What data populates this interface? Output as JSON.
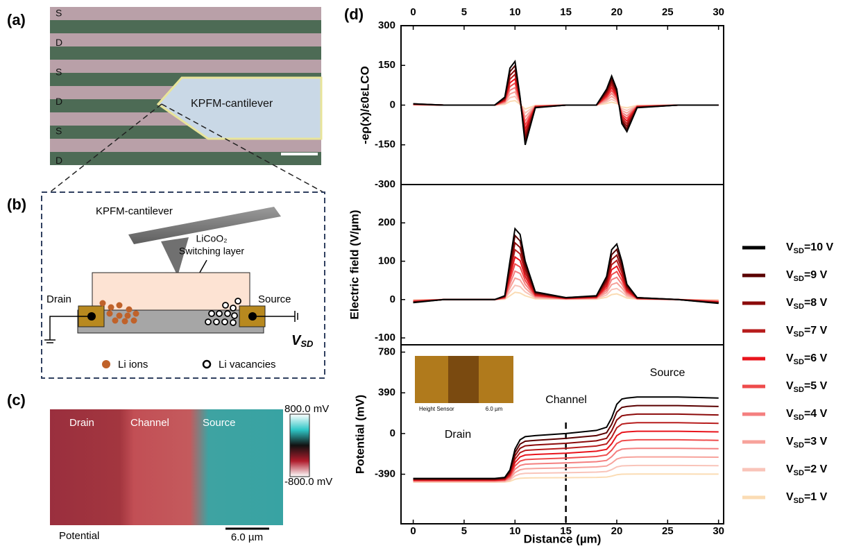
{
  "panels": {
    "a": {
      "label": "(a)",
      "rows": [
        "S",
        "D",
        "S",
        "D",
        "S",
        "D"
      ],
      "cantilever": "KPFM-cantilever"
    },
    "b": {
      "label": "(b)",
      "cantilever": "KPFM-cantilever",
      "material": "LiCoO₂",
      "layer": "Switching layer",
      "drain": "Drain",
      "source": "Source",
      "voltage": "VSD",
      "ions": "Li ions",
      "vacancies": "Li vacancies"
    },
    "c": {
      "label": "(c)",
      "regions": [
        "Drain",
        "Channel",
        "Source"
      ],
      "colorbar_max": "800.0 mV",
      "colorbar_min": "-800.0 mV",
      "caption": "Potential",
      "scale": "6.0 µm"
    },
    "d": {
      "label": "(d)"
    }
  },
  "chart_data": [
    {
      "type": "line",
      "ylabel": "-eρ(x)/ε0εLCO",
      "xaxis": "top",
      "x": [
        0,
        3,
        6,
        8,
        9,
        9.5,
        10,
        10.5,
        11,
        12,
        15,
        18,
        19,
        19.5,
        20,
        20.5,
        21,
        22,
        26,
        30
      ],
      "xlim": [
        -1.2,
        30.5
      ],
      "xticks": [
        0,
        5,
        10,
        15,
        20,
        25,
        30
      ],
      "ylim": [
        -300,
        300
      ],
      "yticks": [
        -300,
        -150,
        0,
        150,
        300
      ],
      "series": [
        {
          "values": [
            5,
            0,
            0,
            0,
            30,
            140,
            165,
            30,
            -150,
            -10,
            0,
            0,
            60,
            110,
            60,
            -70,
            -100,
            -10,
            0,
            0
          ]
        },
        {
          "values": [
            5,
            0,
            0,
            0,
            27,
            126,
            149,
            27,
            -135,
            -9,
            0,
            0,
            54,
            99,
            54,
            -63,
            -90,
            -9,
            0,
            0
          ]
        },
        {
          "values": [
            4,
            0,
            0,
            0,
            24,
            112,
            132,
            24,
            -120,
            -8,
            0,
            0,
            48,
            88,
            48,
            -56,
            -80,
            -8,
            0,
            0
          ]
        },
        {
          "values": [
            4,
            0,
            0,
            0,
            21,
            98,
            116,
            21,
            -105,
            -7,
            0,
            0,
            42,
            77,
            42,
            -49,
            -70,
            -7,
            0,
            0
          ]
        },
        {
          "values": [
            3,
            0,
            0,
            0,
            18,
            84,
            99,
            18,
            -90,
            -6,
            0,
            0,
            36,
            66,
            36,
            -42,
            -60,
            -6,
            0,
            0
          ]
        },
        {
          "values": [
            3,
            0,
            0,
            0,
            15,
            70,
            83,
            15,
            -75,
            -5,
            0,
            0,
            30,
            55,
            30,
            -35,
            -50,
            -5,
            0,
            0
          ]
        },
        {
          "values": [
            2,
            0,
            0,
            0,
            12,
            56,
            66,
            12,
            -60,
            -4,
            0,
            0,
            24,
            44,
            24,
            -28,
            -40,
            -4,
            0,
            0
          ]
        },
        {
          "values": [
            2,
            0,
            0,
            0,
            9,
            42,
            50,
            9,
            -45,
            -3,
            0,
            0,
            18,
            33,
            18,
            -21,
            -30,
            -3,
            0,
            0
          ]
        },
        {
          "values": [
            1,
            0,
            0,
            0,
            6,
            28,
            33,
            6,
            -30,
            -2,
            0,
            0,
            12,
            22,
            12,
            -14,
            -20,
            -2,
            0,
            0
          ]
        },
        {
          "values": [
            1,
            0,
            0,
            0,
            3,
            14,
            17,
            3,
            -15,
            -1,
            0,
            0,
            6,
            11,
            6,
            -7,
            -10,
            -1,
            0,
            0
          ]
        }
      ]
    },
    {
      "type": "line",
      "ylabel": "Electric field (V/µm)",
      "x": [
        0,
        3,
        6,
        8,
        9,
        9.5,
        10,
        10.5,
        11,
        12,
        15,
        18,
        19,
        19.5,
        20,
        20.5,
        21,
        22,
        26,
        30
      ],
      "xlim": [
        -1.2,
        30.5
      ],
      "ylim": [
        -118,
        300
      ],
      "yticks": [
        -100,
        0,
        100,
        200
      ],
      "series": [
        {
          "values": [
            -8,
            0,
            0,
            0,
            10,
            100,
            185,
            170,
            100,
            20,
            5,
            10,
            60,
            130,
            145,
            100,
            40,
            5,
            0,
            -10
          ]
        },
        {
          "values": [
            -7,
            0,
            0,
            0,
            9,
            90,
            167,
            153,
            90,
            18,
            5,
            9,
            54,
            117,
            131,
            90,
            36,
            5,
            0,
            -9
          ]
        },
        {
          "values": [
            -6,
            0,
            0,
            0,
            8,
            80,
            148,
            136,
            80,
            16,
            4,
            8,
            48,
            104,
            116,
            80,
            32,
            4,
            0,
            -8
          ]
        },
        {
          "values": [
            -6,
            0,
            0,
            0,
            7,
            70,
            130,
            119,
            70,
            14,
            4,
            7,
            42,
            91,
            102,
            70,
            28,
            4,
            0,
            -7
          ]
        },
        {
          "values": [
            -5,
            0,
            0,
            0,
            6,
            60,
            111,
            102,
            60,
            12,
            3,
            6,
            36,
            78,
            87,
            60,
            24,
            3,
            0,
            -6
          ]
        },
        {
          "values": [
            -4,
            0,
            0,
            0,
            5,
            50,
            93,
            85,
            50,
            10,
            3,
            5,
            30,
            65,
            73,
            50,
            20,
            3,
            0,
            -5
          ]
        },
        {
          "values": [
            -3,
            0,
            0,
            0,
            4,
            40,
            74,
            68,
            40,
            8,
            2,
            4,
            24,
            52,
            58,
            40,
            16,
            2,
            0,
            -4
          ]
        },
        {
          "values": [
            -2,
            0,
            0,
            0,
            3,
            30,
            56,
            51,
            30,
            6,
            2,
            3,
            18,
            39,
            44,
            30,
            12,
            2,
            0,
            -3
          ]
        },
        {
          "values": [
            -2,
            0,
            0,
            0,
            2,
            20,
            37,
            34,
            20,
            4,
            1,
            2,
            12,
            26,
            29,
            20,
            8,
            1,
            0,
            -2
          ]
        },
        {
          "values": [
            -1,
            0,
            0,
            0,
            1,
            10,
            19,
            17,
            10,
            2,
            1,
            1,
            6,
            13,
            15,
            10,
            4,
            1,
            0,
            -1
          ]
        }
      ]
    },
    {
      "type": "line",
      "ylabel": "Potential (mV)",
      "xlabel": "Distance (µm)",
      "xaxis": "bottom",
      "x": [
        0,
        3,
        6,
        8,
        9,
        9.5,
        10,
        10.5,
        11,
        12,
        15,
        18,
        19,
        19.5,
        20,
        20.5,
        21,
        22,
        26,
        30
      ],
      "xlim": [
        -1.2,
        30.5
      ],
      "xticks": [
        0,
        5,
        10,
        15,
        20,
        25,
        30
      ],
      "ylim": [
        -865,
        850
      ],
      "yticks": [
        -390,
        0,
        390,
        780
      ],
      "annotations": [
        "Drain",
        "Channel",
        "Source"
      ],
      "vline_x": 15,
      "inset": {
        "label": "Height Sensor",
        "scale": "6.0 µm"
      },
      "series": [
        {
          "name": "VSD=10 V",
          "color": "#000000",
          "values": [
            -430,
            -430,
            -430,
            -430,
            -420,
            -350,
            -150,
            -60,
            -30,
            -20,
            0,
            30,
            60,
            150,
            280,
            330,
            340,
            350,
            350,
            340
          ]
        },
        {
          "name": "VSD=9 V",
          "color": "#5a0000",
          "values": [
            -434,
            -434,
            -434,
            -434,
            -425,
            -362,
            -182,
            -101,
            -74,
            -65,
            -47,
            -20,
            7,
            88,
            205,
            250,
            259,
            268,
            268,
            259
          ]
        },
        {
          "name": "VSD=8 V",
          "color": "#8b0a0a",
          "values": [
            -438,
            -438,
            -438,
            -438,
            -430,
            -374,
            -214,
            -142,
            -118,
            -110,
            -94,
            -70,
            -46,
            26,
            130,
            170,
            178,
            186,
            186,
            178
          ]
        },
        {
          "name": "VSD=7 V",
          "color": "#b71c1c",
          "values": [
            -442,
            -442,
            -442,
            -442,
            -435,
            -386,
            -246,
            -183,
            -162,
            -155,
            -141,
            -120,
            -99,
            -36,
            55,
            90,
            97,
            104,
            104,
            97
          ]
        },
        {
          "name": "VSD=6 V",
          "color": "#e8141c",
          "values": [
            -446,
            -446,
            -446,
            -446,
            -440,
            -398,
            -278,
            -224,
            -206,
            -200,
            -188,
            -170,
            -152,
            -98,
            -20,
            10,
            16,
            22,
            22,
            16
          ]
        },
        {
          "name": "VSD=5 V",
          "color": "#ee4b4b",
          "values": [
            -450,
            -450,
            -450,
            -450,
            -445,
            -410,
            -310,
            -265,
            -250,
            -245,
            -235,
            -220,
            -205,
            -160,
            -95,
            -70,
            -65,
            -60,
            -60,
            -65
          ]
        },
        {
          "name": "VSD=4 V",
          "color": "#f47f7f",
          "values": [
            -454,
            -454,
            -454,
            -454,
            -450,
            -422,
            -342,
            -306,
            -294,
            -290,
            -282,
            -270,
            -258,
            -222,
            -170,
            -150,
            -146,
            -142,
            -142,
            -146
          ]
        },
        {
          "name": "VSD=3 V",
          "color": "#f7a29b",
          "values": [
            -458,
            -458,
            -458,
            -458,
            -455,
            -434,
            -374,
            -347,
            -338,
            -335,
            -329,
            -320,
            -311,
            -284,
            -245,
            -230,
            -227,
            -224,
            -224,
            -227
          ]
        },
        {
          "name": "VSD=2 V",
          "color": "#f9c4b9",
          "values": [
            -462,
            -462,
            -462,
            -462,
            -460,
            -446,
            -406,
            -388,
            -382,
            -380,
            -376,
            -370,
            -364,
            -346,
            -320,
            -310,
            -308,
            -306,
            -306,
            -308
          ]
        },
        {
          "name": "VSD=1 V",
          "color": "#fbdcb4",
          "values": [
            -466,
            -466,
            -466,
            -466,
            -465,
            -458,
            -438,
            -429,
            -426,
            -425,
            -423,
            -420,
            -417,
            -408,
            -395,
            -390,
            -389,
            -388,
            -388,
            -389
          ]
        }
      ]
    }
  ]
}
